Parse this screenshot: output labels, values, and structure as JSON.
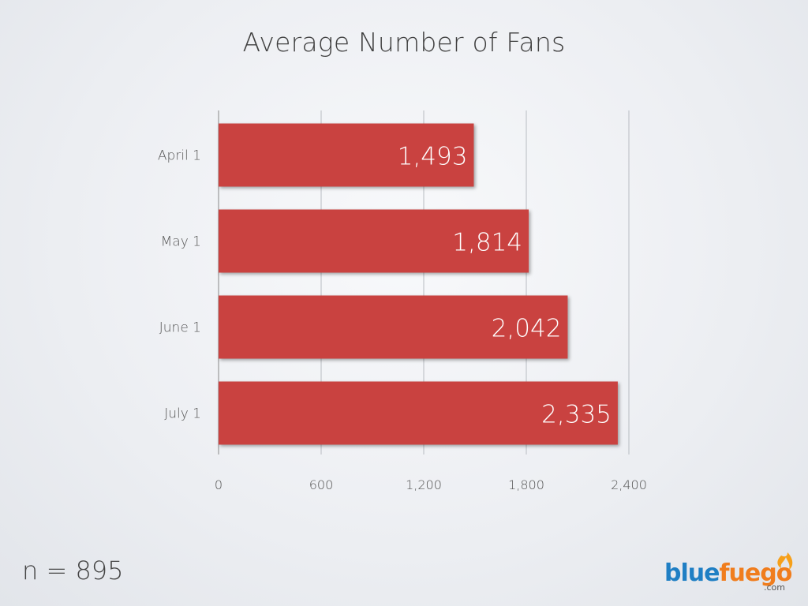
{
  "chart_data": {
    "type": "bar",
    "orientation": "horizontal",
    "title": "Average Number of Fans",
    "xlabel": "",
    "ylabel": "",
    "categories": [
      "April 1",
      "May 1",
      "June 1",
      "July 1"
    ],
    "values": [
      1493,
      1814,
      2042,
      2335
    ],
    "value_labels": [
      "1,493",
      "1,814",
      "2,042",
      "2,335"
    ],
    "xlim": [
      0,
      2400
    ],
    "xticks": [
      0,
      600,
      1200,
      1800,
      2400
    ],
    "xtick_labels": [
      "0",
      "600",
      "1,200",
      "1,800",
      "2,400"
    ],
    "grid": "vertical",
    "bar_color": "#c9433f"
  },
  "footnote": "n = 895",
  "logo": {
    "text_blue": "blue",
    "text_orange": "fuego",
    "suffix": ".com",
    "colors": {
      "blue": "#1f7fc4",
      "orange": "#f07d1d",
      "flame": "#f6a01a"
    }
  }
}
